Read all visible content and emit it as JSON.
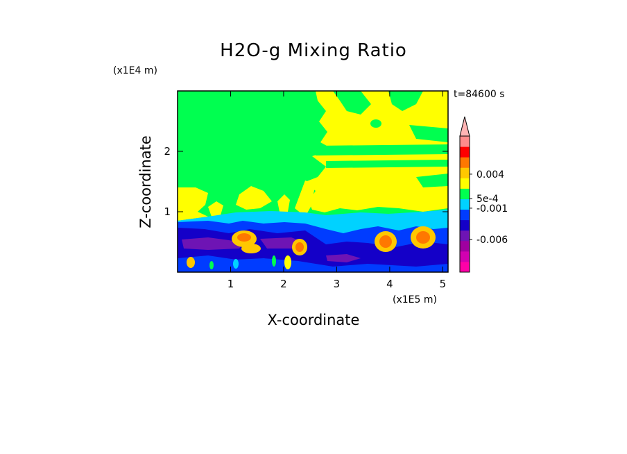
{
  "title": "H2O-g Mixing Ratio",
  "z_exponent_label": "(x1E4 m)",
  "x_exponent_label": "(x1E5 m)",
  "time_label": "t=84600 s",
  "chart_data": {
    "type": "contour",
    "title": "H2O-g Mixing Ratio",
    "xlabel": "X-coordinate",
    "ylabel": "Z-coordinate",
    "x_units_label": "(x1E5 m)",
    "y_units_label": "(x1E4 m)",
    "time": "t=84600 s",
    "xlim": [
      0,
      5.1
    ],
    "ylim": [
      0,
      3
    ],
    "x_ticks": [
      1,
      2,
      3,
      4,
      5
    ],
    "x_tick_labels": [
      "1",
      "2",
      "3",
      "4",
      "5"
    ],
    "y_ticks": [
      1,
      2
    ],
    "y_tick_labels": [
      "1",
      "2"
    ],
    "colorbar": {
      "labels": [
        {
          "text": "0.004",
          "pos": 0.72
        },
        {
          "text": "5e-4",
          "pos": 0.54
        },
        {
          "text": "-0.001",
          "pos": 0.47
        },
        {
          "text": "-0.006",
          "pos": 0.24
        }
      ],
      "colors": [
        "#ff00a8",
        "#d200b0",
        "#a000a0",
        "#6e14b4",
        "#1400c8",
        "#003cff",
        "#00d2ff",
        "#00ff50",
        "#ffff00",
        "#ffc800",
        "#ff7800",
        "#ff0000",
        "#ff8c8c"
      ]
    },
    "regions": [
      {
        "color": "#00ff50",
        "desc": "upper domain background"
      },
      {
        "color": "#ffff00",
        "desc": "patches aloft and near z=1"
      },
      {
        "color": "#00d2ff",
        "desc": "band near z=0.8"
      },
      {
        "color": "#003cff",
        "desc": "lower layer"
      },
      {
        "color": "#1400c8",
        "desc": "lower layer"
      },
      {
        "color": "#6e14b4",
        "desc": "band near z=0.45"
      },
      {
        "color": "#ffc800",
        "desc": "blobs at x~1.2, 2.3, 4.0, 4.7"
      },
      {
        "color": "#ff7800",
        "desc": "blob cores"
      }
    ]
  }
}
